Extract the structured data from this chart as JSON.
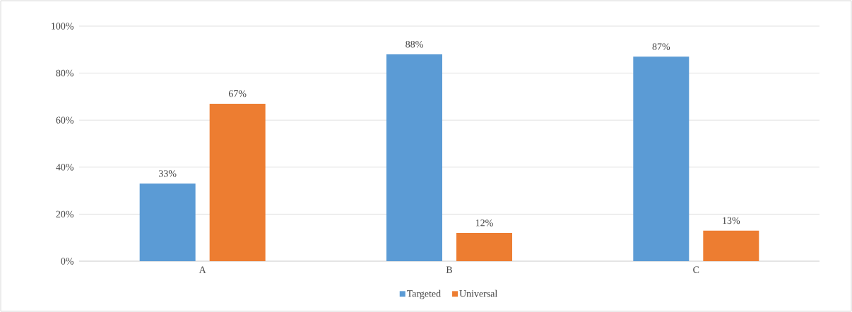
{
  "chart_data": {
    "type": "bar",
    "categories": [
      "A",
      "B",
      "C"
    ],
    "series": [
      {
        "name": "Targeted",
        "color": "#5b9bd5",
        "values": [
          33,
          88,
          87
        ],
        "value_labels": [
          "33%",
          "88%",
          "87%"
        ]
      },
      {
        "name": "Universal",
        "color": "#ed7d31",
        "values": [
          67,
          12,
          13
        ],
        "value_labels": [
          "67%",
          "12%",
          "13%"
        ]
      }
    ],
    "ylim": [
      0,
      100
    ],
    "yticks": [
      {
        "value": 0,
        "label": "0%"
      },
      {
        "value": 20,
        "label": "20%"
      },
      {
        "value": 40,
        "label": "40%"
      },
      {
        "value": 60,
        "label": "60%"
      },
      {
        "value": 80,
        "label": "80%"
      },
      {
        "value": 100,
        "label": "100%"
      }
    ],
    "grid": "y",
    "legend": "bottom"
  }
}
